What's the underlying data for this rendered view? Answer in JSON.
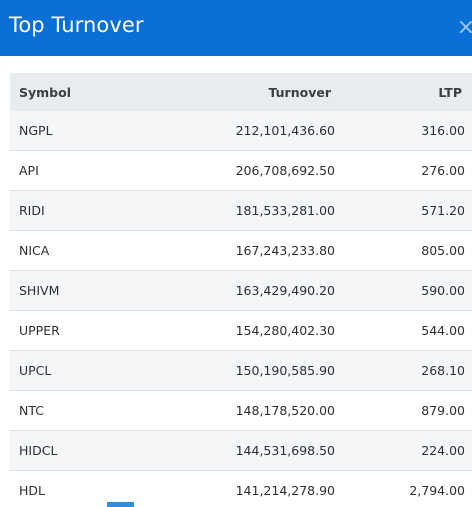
{
  "header": {
    "title": "Top Turnover",
    "close_symbol": "×",
    "bg_color": "#0a6fd6"
  },
  "table": {
    "columns": [
      "Symbol",
      "Turnover",
      "LTP"
    ],
    "rows": [
      {
        "symbol": "NGPL",
        "turnover": "212,101,436.60",
        "ltp": "316.00"
      },
      {
        "symbol": "API",
        "turnover": "206,708,692.50",
        "ltp": "276.00"
      },
      {
        "symbol": "RIDI",
        "turnover": "181,533,281.00",
        "ltp": "571.20"
      },
      {
        "symbol": "NICA",
        "turnover": "167,243,233.80",
        "ltp": "805.00"
      },
      {
        "symbol": "SHIVM",
        "turnover": "163,429,490.20",
        "ltp": "590.00"
      },
      {
        "symbol": "UPPER",
        "turnover": "154,280,402.30",
        "ltp": "544.00"
      },
      {
        "symbol": "UPCL",
        "turnover": "150,190,585.90",
        "ltp": "268.10"
      },
      {
        "symbol": "NTC",
        "turnover": "148,178,520.00",
        "ltp": "879.00"
      },
      {
        "symbol": "HIDCL",
        "turnover": "144,531,698.50",
        "ltp": "224.00"
      },
      {
        "symbol": "HDL",
        "turnover": "141,214,278.90",
        "ltp": "2,794.00"
      }
    ]
  }
}
